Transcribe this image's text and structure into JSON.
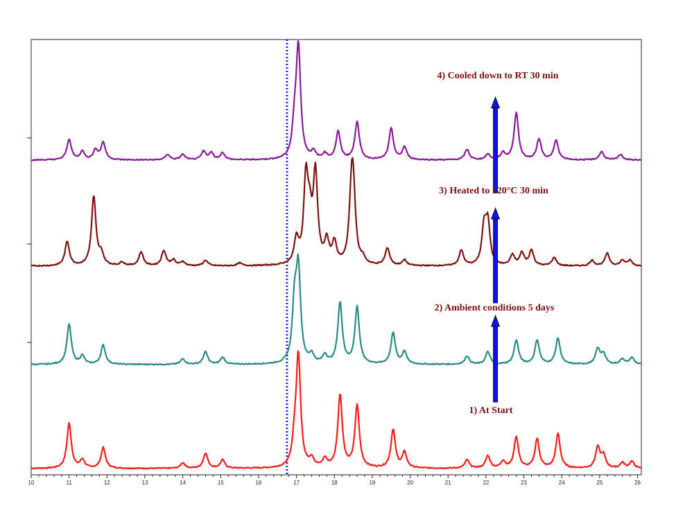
{
  "chart_data": {
    "type": "line",
    "title": "",
    "xlabel": "",
    "ylabel": "",
    "xlim": [
      10,
      26.1
    ],
    "x_ticks": [
      10,
      11,
      12,
      13,
      14,
      15,
      16,
      17,
      18,
      19,
      20,
      21,
      22,
      23,
      24,
      25,
      26
    ],
    "grid": false,
    "legend": "none",
    "reference_line": {
      "x": 16.75,
      "style": "dotted",
      "color": "#1a1aff"
    },
    "series": [
      {
        "name": "1)  At Start",
        "color": "#ff1a1a",
        "label_color": "#7a1010",
        "baseline": 0,
        "peaks": [
          [
            11.0,
            65
          ],
          [
            11.35,
            12
          ],
          [
            11.9,
            30
          ],
          [
            14.0,
            8
          ],
          [
            14.6,
            22
          ],
          [
            15.05,
            12
          ],
          [
            16.95,
            30
          ],
          [
            17.05,
            160
          ],
          [
            17.4,
            12
          ],
          [
            17.75,
            12
          ],
          [
            18.15,
            105
          ],
          [
            18.6,
            90
          ],
          [
            19.55,
            55
          ],
          [
            19.85,
            22
          ],
          [
            21.5,
            12
          ],
          [
            22.05,
            18
          ],
          [
            22.45,
            10
          ],
          [
            22.8,
            45
          ],
          [
            23.35,
            42
          ],
          [
            23.9,
            50
          ],
          [
            24.95,
            30
          ],
          [
            25.1,
            18
          ],
          [
            25.6,
            8
          ],
          [
            25.85,
            10
          ]
        ]
      },
      {
        "name": "2)  Ambient conditions 5 days",
        "color": "#2a8a86",
        "label_color": "#7a1010",
        "baseline": 150,
        "peaks": [
          [
            11.0,
            58
          ],
          [
            11.35,
            12
          ],
          [
            11.9,
            28
          ],
          [
            14.0,
            8
          ],
          [
            14.6,
            18
          ],
          [
            15.05,
            10
          ],
          [
            16.95,
            80
          ],
          [
            17.05,
            130
          ],
          [
            17.4,
            12
          ],
          [
            17.75,
            12
          ],
          [
            18.15,
            88
          ],
          [
            18.6,
            82
          ],
          [
            19.55,
            45
          ],
          [
            19.85,
            18
          ],
          [
            21.5,
            12
          ],
          [
            22.05,
            18
          ],
          [
            22.8,
            35
          ],
          [
            23.35,
            35
          ],
          [
            23.9,
            38
          ],
          [
            24.95,
            22
          ],
          [
            25.1,
            15
          ],
          [
            25.6,
            8
          ],
          [
            25.85,
            10
          ]
        ]
      },
      {
        "name": "3)  Heated to 120°C 30 min",
        "color": "#7f1010",
        "label_color": "#7a1010",
        "baseline": 292,
        "peaks": [
          [
            10.95,
            35
          ],
          [
            11.65,
            100
          ],
          [
            11.85,
            15
          ],
          [
            12.4,
            5
          ],
          [
            12.9,
            20
          ],
          [
            13.5,
            22
          ],
          [
            13.75,
            8
          ],
          [
            14.0,
            6
          ],
          [
            14.6,
            8
          ],
          [
            15.5,
            4
          ],
          [
            17.0,
            35
          ],
          [
            17.25,
            118
          ],
          [
            17.35,
            52
          ],
          [
            17.5,
            128
          ],
          [
            17.8,
            32
          ],
          [
            18.0,
            30
          ],
          [
            18.45,
            85
          ],
          [
            18.5,
            88
          ],
          [
            18.75,
            8
          ],
          [
            19.4,
            25
          ],
          [
            19.85,
            8
          ],
          [
            21.35,
            22
          ],
          [
            21.95,
            52
          ],
          [
            22.05,
            58
          ],
          [
            22.7,
            15
          ],
          [
            22.95,
            18
          ],
          [
            23.2,
            22
          ],
          [
            23.8,
            12
          ],
          [
            24.8,
            8
          ],
          [
            25.2,
            18
          ],
          [
            25.6,
            8
          ],
          [
            25.8,
            8
          ]
        ]
      },
      {
        "name": "4)  Cooled down to RT 30 min",
        "color": "#8a1a99",
        "label_color": "#7a1010",
        "baseline": 445,
        "peaks": [
          [
            11.0,
            30
          ],
          [
            11.35,
            12
          ],
          [
            11.7,
            14
          ],
          [
            11.9,
            25
          ],
          [
            13.6,
            8
          ],
          [
            14.0,
            8
          ],
          [
            14.55,
            12
          ],
          [
            14.75,
            10
          ],
          [
            15.05,
            10
          ],
          [
            16.95,
            40
          ],
          [
            17.05,
            160
          ],
          [
            17.45,
            10
          ],
          [
            17.75,
            8
          ],
          [
            18.1,
            40
          ],
          [
            18.6,
            55
          ],
          [
            19.5,
            45
          ],
          [
            19.85,
            18
          ],
          [
            21.5,
            15
          ],
          [
            22.05,
            8
          ],
          [
            22.45,
            10
          ],
          [
            22.8,
            68
          ],
          [
            23.4,
            30
          ],
          [
            23.85,
            28
          ],
          [
            25.05,
            12
          ],
          [
            25.55,
            8
          ]
        ]
      }
    ],
    "arrows": [
      {
        "x": 22.25,
        "from_level": 0,
        "to_level": 1
      },
      {
        "x": 22.25,
        "from_level": 1,
        "to_level": 2
      },
      {
        "x": 22.25,
        "from_level": 2,
        "to_level": 3
      }
    ]
  }
}
